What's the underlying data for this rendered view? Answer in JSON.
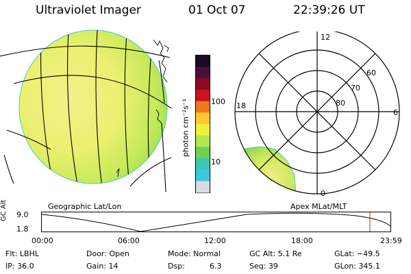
{
  "header": {
    "title": "Ultraviolet Imager",
    "date": "01 Oct 07",
    "time": "22:39:26 UT"
  },
  "colorbar": {
    "label": "photon cm⁻²s⁻¹",
    "tick_labels": [
      "100",
      "10"
    ],
    "colors": [
      "#1a0a24",
      "#4b0f3c",
      "#8a0a1e",
      "#c8141e",
      "#f0781e",
      "#ffc832",
      "#f0f03c",
      "#b4e650",
      "#6cd250",
      "#3cc8b4",
      "#3cc8dc",
      "#d7dce1"
    ]
  },
  "polar": {
    "mlt_labels": [
      "12",
      "18",
      "6",
      "0"
    ],
    "mlat_labels": [
      "60",
      "70",
      "80"
    ]
  },
  "panel_labels": {
    "left": "Geographic Lat/Lon",
    "right": "Apex MLat/MLT"
  },
  "timeline": {
    "axis_label": "GC Alt",
    "y_ticks": [
      "9.0",
      "1.8"
    ],
    "x_ticks": [
      "00:00",
      "06:00",
      "12:00",
      "18:00",
      "23:59"
    ],
    "marker_color": "#cc2020"
  },
  "info": {
    "flt": "Flt: LBHL",
    "ip": "IP: 36.0",
    "door": "Door: Open",
    "gain": "Gain: 14",
    "mode": "Mode: Normal",
    "dsp_label": "Dsp:",
    "dsp_value": "6.3",
    "gc_alt": "GC Alt: 5.1 Re",
    "seq": "Seq: 39",
    "glat": "GLat: −49.5",
    "glon": "GLon: 345.1"
  }
}
